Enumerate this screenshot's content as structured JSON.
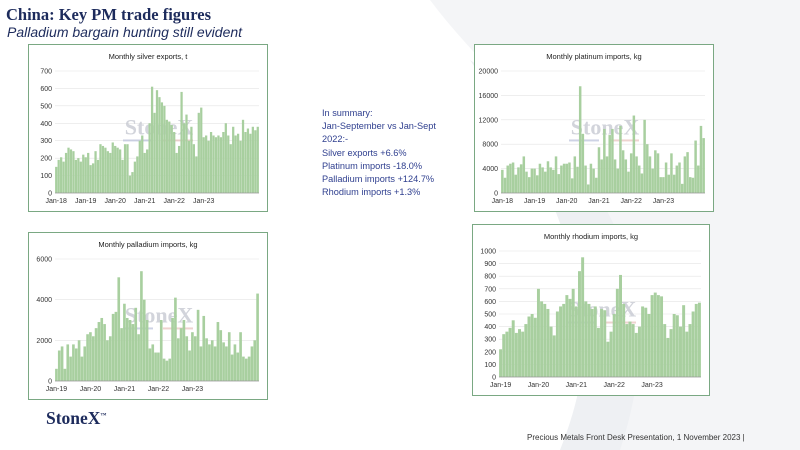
{
  "header": {
    "title": "China: Key PM trade figures",
    "subtitle": "Palladium bargain hunting still evident"
  },
  "summary": {
    "lines": [
      "In summary:",
      "Jan-September vs Jan-Sept",
      "2022:-",
      "Silver exports +6.6%",
      "Platinum imports -18.0%",
      "Palladium imports +124.7%",
      "Rhodium imports +1.3%"
    ]
  },
  "brand": {
    "name": "StoneX",
    "mark": "™"
  },
  "footer": {
    "text": "Precious Metals Front Desk Presentation, 1 November 2023 |"
  },
  "watermark": {
    "text": "StoneX"
  },
  "colors": {
    "bar": "#a8cf9f",
    "frame": "#7aa883",
    "text": "#1d2b5c",
    "summary": "#2f3f8f"
  },
  "chart_data": [
    {
      "id": "silver",
      "type": "bar",
      "title": "Monthly silver exports, t",
      "ylim": [
        0,
        700
      ],
      "yticks": [
        0,
        100,
        200,
        300,
        400,
        500,
        600,
        700
      ],
      "x_start": "Jan-18",
      "xtick_labels": [
        "Jan-18",
        "Jan-19",
        "Jan-20",
        "Jan-21",
        "Jan-22",
        "Jan-23"
      ],
      "grid": true,
      "values": [
        150,
        190,
        205,
        180,
        230,
        260,
        250,
        240,
        190,
        200,
        180,
        220,
        205,
        230,
        160,
        170,
        240,
        190,
        280,
        270,
        260,
        240,
        230,
        290,
        270,
        260,
        250,
        190,
        280,
        280,
        100,
        120,
        180,
        210,
        300,
        330,
        230,
        250,
        400,
        610,
        460,
        590,
        550,
        520,
        500,
        420,
        410,
        390,
        350,
        230,
        270,
        580,
        400,
        450,
        300,
        380,
        280,
        210,
        460,
        490,
        320,
        330,
        300,
        350,
        330,
        320,
        330,
        320,
        350,
        400,
        330,
        280,
        380,
        330,
        340,
        300,
        420,
        350,
        370,
        340,
        380,
        360,
        380
      ]
    },
    {
      "id": "platinum",
      "type": "bar",
      "title": "Monthly platinum imports, kg",
      "ylim": [
        0,
        20000
      ],
      "yticks": [
        0,
        4000,
        8000,
        12000,
        16000,
        20000
      ],
      "x_start": "Jan-18",
      "xtick_labels": [
        "Jan-18",
        "Jan-19",
        "Jan-20",
        "Jan-21",
        "Jan-22",
        "Jan-23"
      ],
      "grid": true,
      "values": [
        3800,
        2500,
        4500,
        4800,
        5000,
        3000,
        4200,
        4700,
        6000,
        3500,
        2600,
        4000,
        4000,
        2900,
        4800,
        4200,
        3500,
        5200,
        4200,
        3800,
        6000,
        3100,
        4500,
        4800,
        4800,
        5000,
        2400,
        6000,
        4300,
        17500,
        9700,
        4500,
        1400,
        4800,
        4000,
        2500,
        7500,
        5500,
        10500,
        6000,
        9500,
        10500,
        5500,
        4000,
        11000,
        7000,
        5500,
        3500,
        6500,
        12700,
        6000,
        4500,
        3200,
        12000,
        8000,
        6000,
        4000,
        7000,
        6500,
        2600,
        2600,
        5000,
        3000,
        6500,
        3000,
        4500,
        5000,
        1500,
        6000,
        6700,
        2600,
        2500,
        8600,
        4500,
        11000,
        9000
      ]
    },
    {
      "id": "palladium",
      "type": "bar",
      "title": "Monthly palladium imports, kg",
      "ylim": [
        0,
        6000
      ],
      "yticks": [
        0,
        2000,
        4000,
        6000
      ],
      "x_start": "Jan-19",
      "xtick_labels": [
        "Jan-19",
        "Jan-20",
        "Jan-21",
        "Jan-22",
        "Jan-23"
      ],
      "grid": true,
      "values": [
        600,
        1500,
        1700,
        600,
        1800,
        1200,
        1800,
        1600,
        2000,
        1200,
        1700,
        2300,
        2400,
        2200,
        2600,
        2900,
        3100,
        2800,
        2000,
        2200,
        3300,
        3400,
        5100,
        2600,
        3800,
        3100,
        3000,
        2800,
        3600,
        2300,
        5400,
        4000,
        3000,
        1600,
        1800,
        1400,
        1400,
        3000,
        1100,
        1000,
        1100,
        3100,
        4100,
        2100,
        2600,
        3000,
        2200,
        1500,
        2400,
        2200,
        3500,
        1700,
        3200,
        2100,
        1800,
        2000,
        1700,
        2900,
        2500,
        1900,
        1700,
        2400,
        1300,
        1800,
        1400,
        2400,
        1200,
        1100,
        1200,
        1700,
        2000,
        4300
      ]
    },
    {
      "id": "rhodium",
      "type": "bar",
      "title": "Monthly rhodium imports, kg",
      "ylim": [
        0,
        1000
      ],
      "yticks": [
        0,
        100,
        200,
        300,
        400,
        500,
        600,
        700,
        800,
        900,
        1000
      ],
      "x_start": "Jan-19",
      "xtick_labels": [
        "Jan-19",
        "Jan-20",
        "Jan-21",
        "Jan-22",
        "Jan-23"
      ],
      "grid": true,
      "values": [
        220,
        340,
        360,
        390,
        450,
        350,
        380,
        360,
        420,
        480,
        500,
        470,
        700,
        600,
        580,
        540,
        400,
        330,
        520,
        560,
        580,
        650,
        620,
        700,
        560,
        840,
        950,
        600,
        580,
        540,
        560,
        390,
        540,
        530,
        280,
        360,
        500,
        700,
        810,
        580,
        420,
        440,
        420,
        350,
        400,
        560,
        550,
        500,
        650,
        670,
        650,
        640,
        420,
        310,
        380,
        500,
        490,
        400,
        570,
        360,
        420,
        520,
        580,
        590
      ]
    }
  ]
}
